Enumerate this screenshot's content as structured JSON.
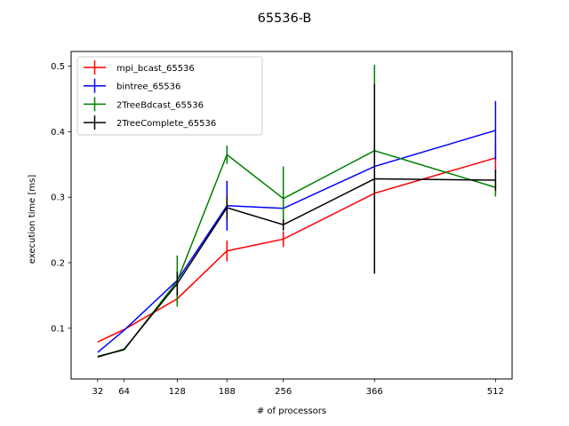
{
  "chart_data": {
    "type": "line",
    "title": "65536-B",
    "xlabel": "# of processors",
    "ylabel": "execution time [ms]",
    "x": [
      32,
      64,
      128,
      188,
      256,
      366,
      512
    ],
    "xticks": [
      "32",
      "64",
      "128",
      "188",
      "256",
      "366",
      "512"
    ],
    "yticks": [
      "0.1",
      "0.2",
      "0.3",
      "0.4",
      "0.5"
    ],
    "xlim": [
      0,
      532
    ],
    "ylim": [
      0.0225,
      0.5225
    ],
    "legend_position": "top-left",
    "grid": false,
    "series": [
      {
        "name": "mpi_bcast_65536",
        "color": "#ff0000",
        "values": [
          0.079,
          0.098,
          0.145,
          0.218,
          0.236,
          0.306,
          0.36
        ],
        "errors": [
          0.0,
          0.0,
          0.006,
          0.016,
          0.012,
          0.03,
          0.023
        ]
      },
      {
        "name": "bintree_65536",
        "color": "#0000ff",
        "values": [
          0.063,
          0.097,
          0.173,
          0.287,
          0.283,
          0.347,
          0.402
        ],
        "errors": [
          0.0,
          0.0,
          0.008,
          0.038,
          0.0,
          0.0,
          0.045
        ]
      },
      {
        "name": "2TreeBdcast_65536",
        "color": "#008000",
        "values": [
          0.057,
          0.067,
          0.172,
          0.365,
          0.298,
          0.371,
          0.315
        ],
        "errors": [
          0.0,
          0.0,
          0.039,
          0.014,
          0.049,
          0.131,
          0.014
        ]
      },
      {
        "name": "2TreeComplete_65536",
        "color": "#000000",
        "values": [
          0.056,
          0.068,
          0.168,
          0.284,
          0.258,
          0.328,
          0.326
        ],
        "errors": [
          0.0,
          0.0,
          0.018,
          0.018,
          0.008,
          0.145,
          0.016
        ]
      }
    ]
  }
}
